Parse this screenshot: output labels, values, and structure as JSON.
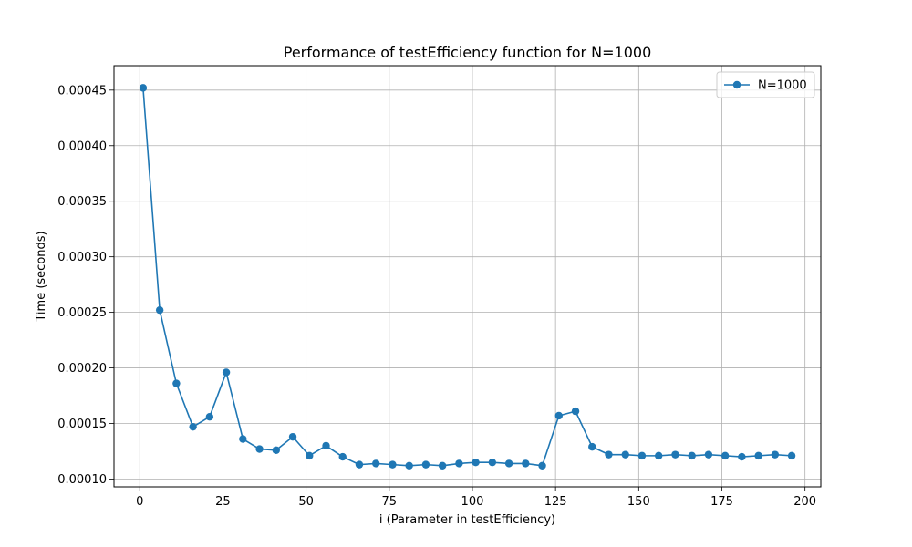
{
  "chart_data": {
    "type": "line",
    "title": "Performance of testEfficiency function for N=1000",
    "xlabel": "i (Parameter in testEfficiency)",
    "ylabel": "Time (seconds)",
    "xlim": [
      -7.75,
      204.75
    ],
    "ylim": [
      9.3e-05,
      0.000472
    ],
    "xticks": [
      0,
      25,
      50,
      75,
      100,
      125,
      150,
      175,
      200
    ],
    "xtick_labels": [
      "0",
      "25",
      "50",
      "75",
      "100",
      "125",
      "150",
      "175",
      "200"
    ],
    "yticks": [
      0.0001,
      0.00015,
      0.0002,
      0.00025,
      0.0003,
      0.00035,
      0.0004,
      0.00045
    ],
    "ytick_labels": [
      "0.00010",
      "0.00015",
      "0.00020",
      "0.00025",
      "0.00030",
      "0.00035",
      "0.00040",
      "0.00045"
    ],
    "grid": true,
    "legend_position": "top-right",
    "series": [
      {
        "name": "N=1000",
        "color": "#1f77b4",
        "marker": "circle",
        "x": [
          1,
          6,
          11,
          16,
          21,
          26,
          31,
          36,
          41,
          46,
          51,
          56,
          61,
          66,
          71,
          76,
          81,
          86,
          91,
          96,
          101,
          106,
          111,
          116,
          121,
          126,
          131,
          136,
          141,
          146,
          151,
          156,
          161,
          166,
          171,
          176,
          181,
          186,
          191,
          196
        ],
        "y": [
          0.000452,
          0.000252,
          0.000186,
          0.000147,
          0.000156,
          0.000196,
          0.000136,
          0.000127,
          0.000126,
          0.000138,
          0.000121,
          0.00013,
          0.00012,
          0.000113,
          0.000114,
          0.000113,
          0.000112,
          0.000113,
          0.000112,
          0.000114,
          0.000115,
          0.000115,
          0.000114,
          0.000114,
          0.000112,
          0.000157,
          0.000161,
          0.000129,
          0.000122,
          0.000122,
          0.000121,
          0.000121,
          0.000122,
          0.000121,
          0.000122,
          0.000121,
          0.00012,
          0.000121,
          0.000122,
          0.000121
        ]
      }
    ]
  }
}
